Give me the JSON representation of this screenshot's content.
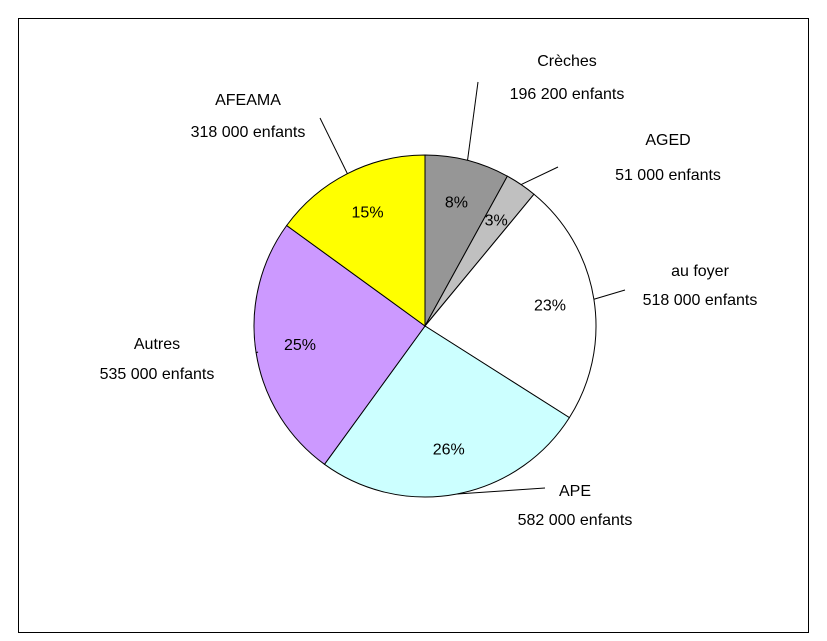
{
  "chart_data": {
    "type": "pie",
    "categories": [
      "Crèches",
      "AGED",
      "au foyer",
      "APE",
      "Autres",
      "AFEAMA"
    ],
    "sublabels": [
      "196 200 enfants",
      "51 000 enfants",
      "518 000 enfants",
      "582 000 enfants",
      "535 000 enfants",
      "318 000 enfants"
    ],
    "values": [
      8,
      3,
      23,
      26,
      25,
      15
    ],
    "value_labels": [
      "8%",
      "3%",
      "23%",
      "26%",
      "25%",
      "15%"
    ],
    "colors": [
      "#969696",
      "#c0c0c0",
      "#ffffff",
      "#ccffff",
      "#cc99ff",
      "#ffff00"
    ]
  }
}
